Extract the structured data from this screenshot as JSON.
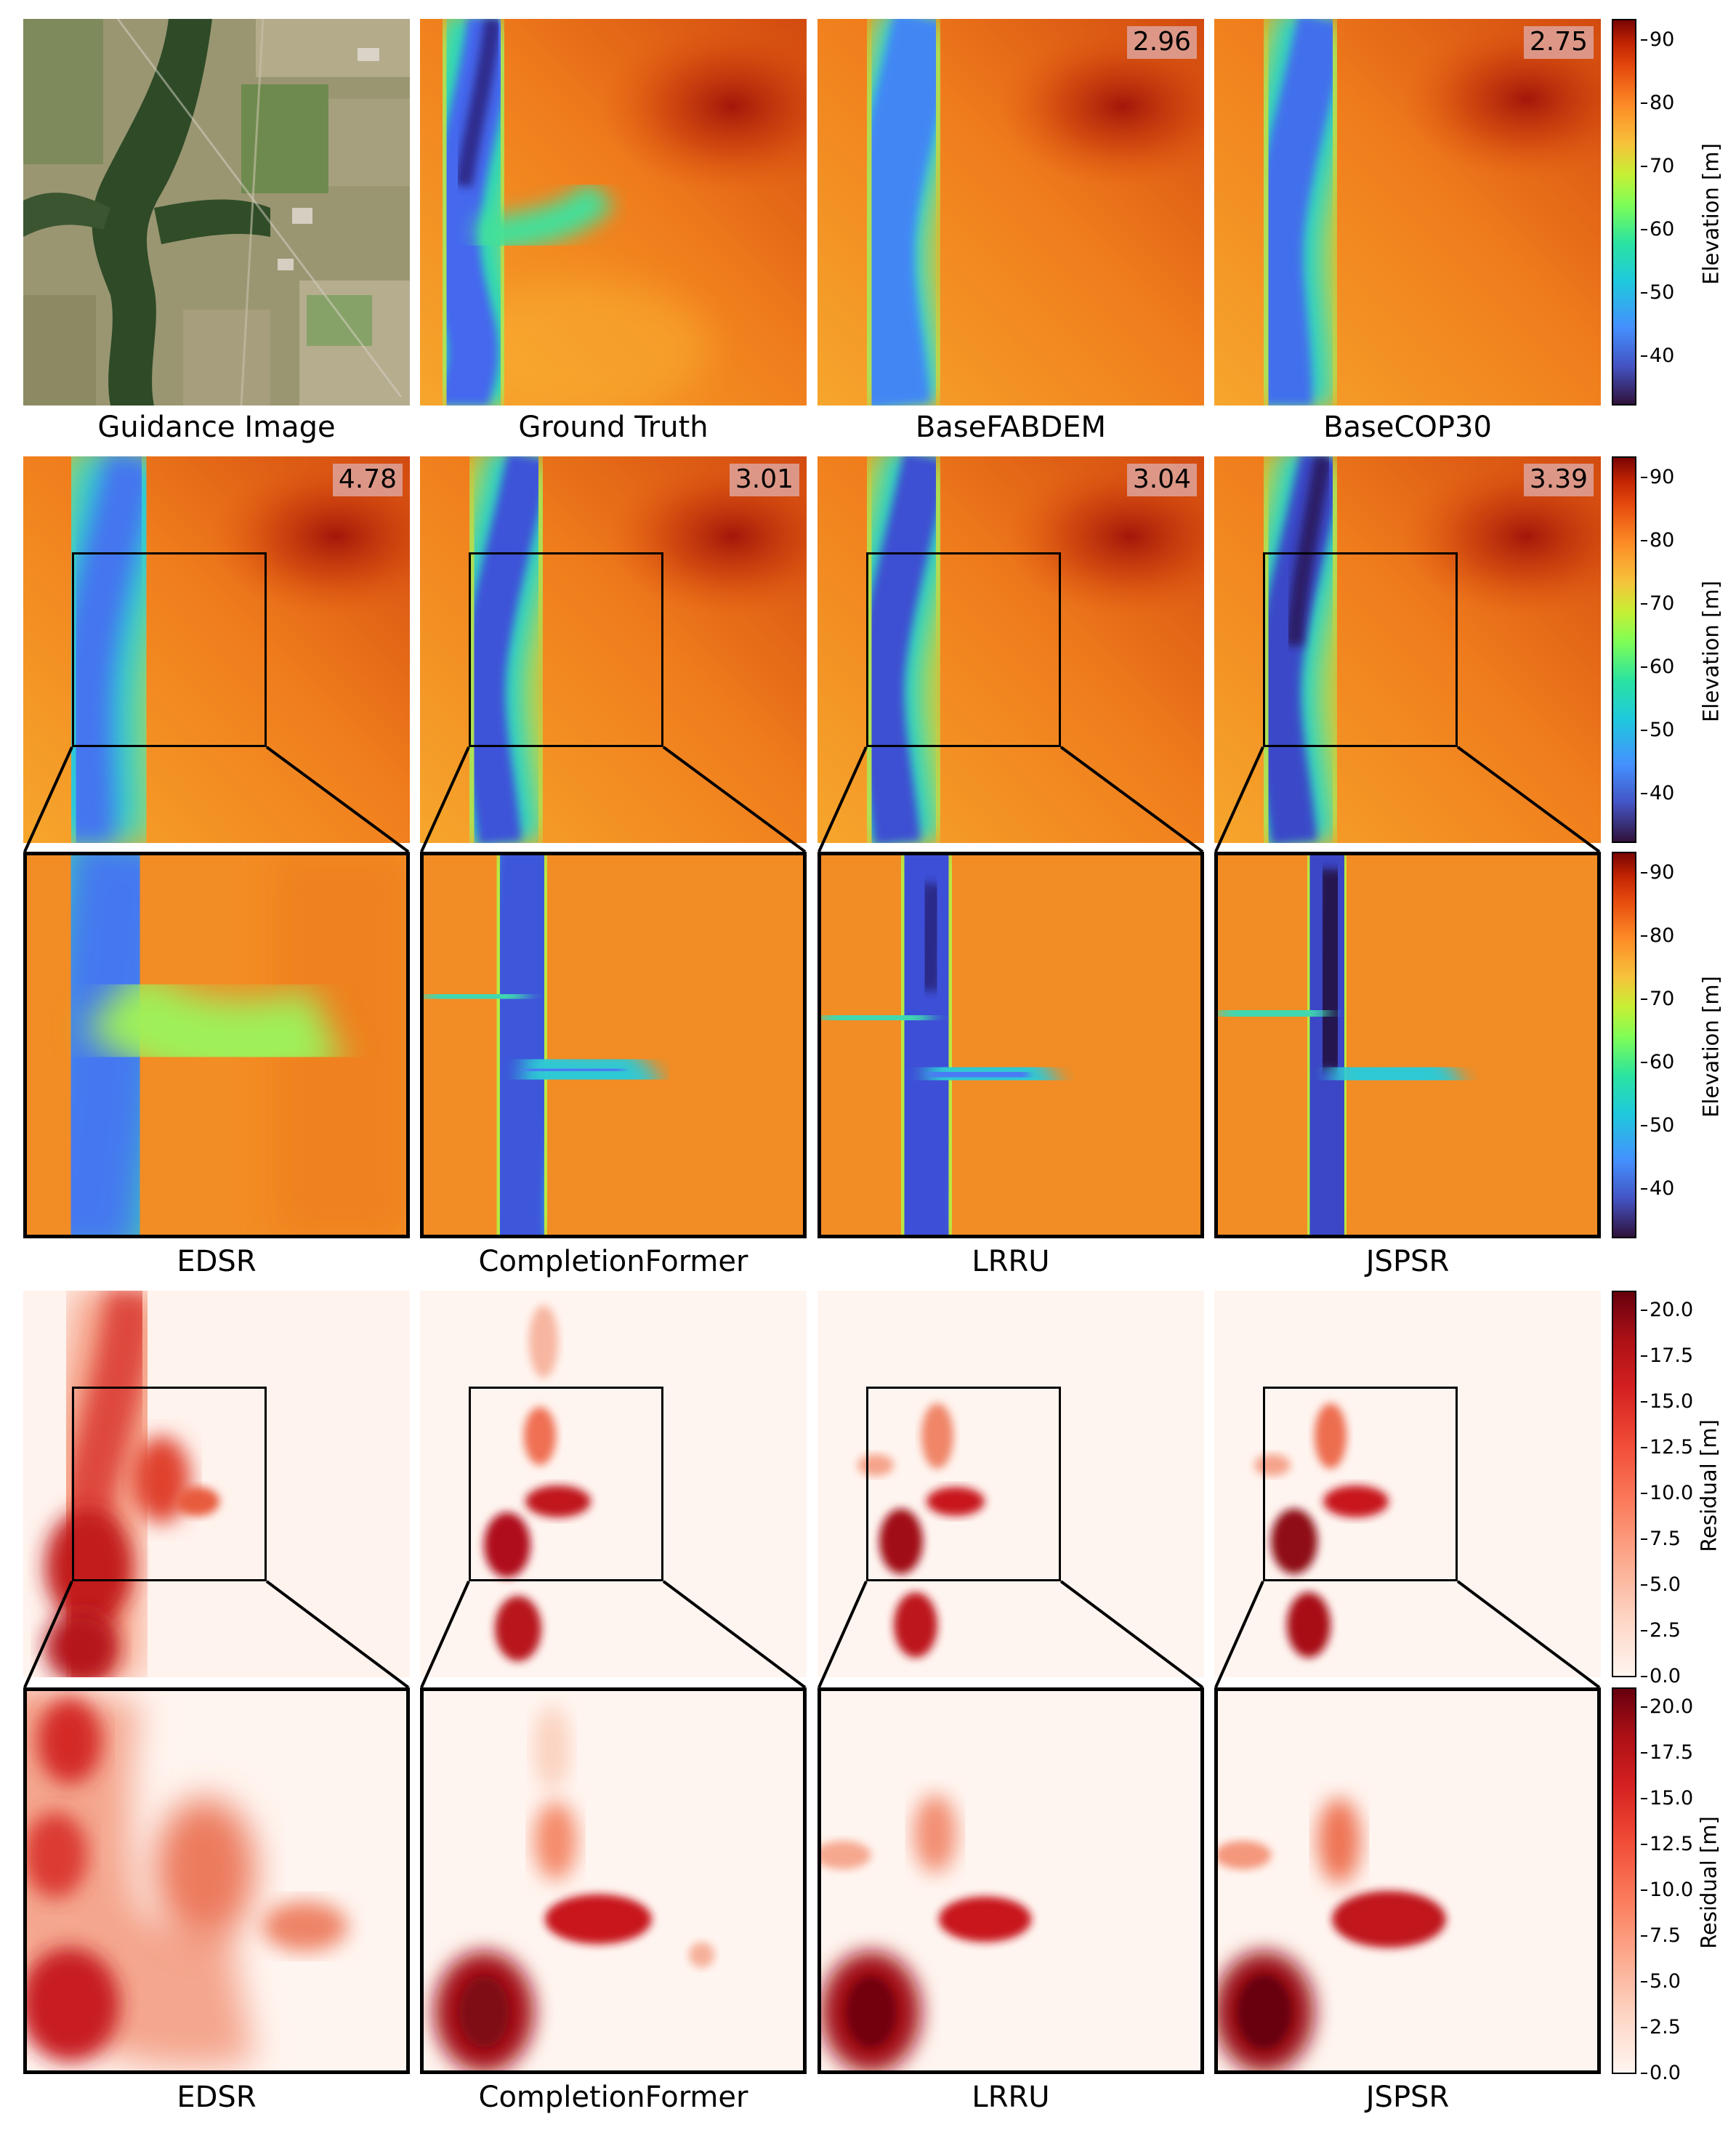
{
  "captions": {
    "row1": [
      "Guidance Image",
      "Ground Truth",
      "BaseFABDEM",
      "BaseCOP30"
    ],
    "row3": [
      "EDSR",
      "CompletionFormer",
      "LRRU",
      "JSPSR"
    ],
    "row5": [
      "EDSR",
      "CompletionFormer",
      "LRRU",
      "JSPSR"
    ]
  },
  "scores": {
    "row1": [
      "2.96",
      "2.75"
    ],
    "row2": [
      "4.78",
      "3.01",
      "3.04",
      "3.39"
    ]
  },
  "colorbars": {
    "elevation": {
      "label": "Elevation [m]",
      "ticks": [
        "90",
        "80",
        "70",
        "60",
        "50",
        "40"
      ],
      "range": [
        32,
        93
      ],
      "colormap": "turbo"
    },
    "residual": {
      "label": "Residual [m]",
      "ticks": [
        "20.0",
        "17.5",
        "15.0",
        "12.5",
        "10.0",
        "7.5",
        "5.0",
        "2.5",
        "0.0"
      ],
      "range": [
        0,
        21
      ],
      "colormap": "reds"
    }
  },
  "colors": {
    "river_deep": "#30123b",
    "river": "#4467f0",
    "bank": "#2ed4b5",
    "terrain": "#f28a22",
    "high": "#b31f0a",
    "residual_low": "#fff5f0",
    "residual_high": "#8b0a12"
  }
}
